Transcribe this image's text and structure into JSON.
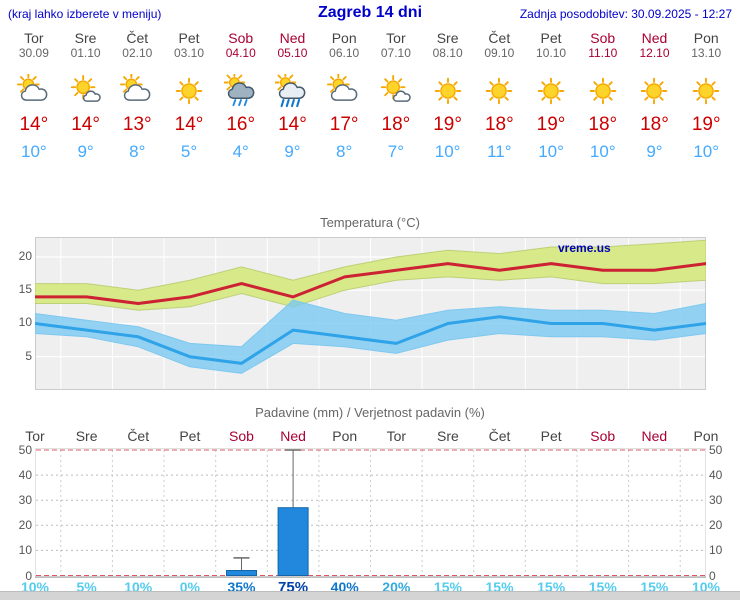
{
  "header": {
    "left_note": "(kraj lahko izberete v meniju)",
    "title": "Zagreb 14 dni",
    "last_update": "Zadnja posodobitev: 30.09.2025 - 12:27"
  },
  "watermark": "vreme.us",
  "colors": {
    "header_blue": "#0000cc",
    "watermark_blue": "#0000bb",
    "weekday": "#444444",
    "weekday_date": "#666666",
    "weekend": "#aa0033",
    "temp_high": "#cc0000",
    "temp_low": "#44aaff",
    "max_line": "#cc2233",
    "min_line": "#2fa3e8",
    "max_band": "rgba(213,232,130,0.95)",
    "min_band": "rgba(120,200,242,0.78)"
  },
  "days": [
    {
      "name": "Tor",
      "date": "30.09",
      "icon": "sun-behind-cloud",
      "high": "14°",
      "low": "10°",
      "weekend": false
    },
    {
      "name": "Sre",
      "date": "01.10",
      "icon": "sun-with-small-cloud",
      "high": "14°",
      "low": "9°",
      "weekend": false
    },
    {
      "name": "Čet",
      "date": "02.10",
      "icon": "sun-behind-cloud",
      "high": "13°",
      "low": "8°",
      "weekend": false
    },
    {
      "name": "Pet",
      "date": "03.10",
      "icon": "sunny",
      "high": "14°",
      "low": "5°",
      "weekend": false
    },
    {
      "name": "Sob",
      "date": "04.10",
      "icon": "rain-showers-sun",
      "high": "16°",
      "low": "4°",
      "weekend": true
    },
    {
      "name": "Ned",
      "date": "05.10",
      "icon": "heavy-rain-sun",
      "high": "14°",
      "low": "9°",
      "weekend": true
    },
    {
      "name": "Pon",
      "date": "06.10",
      "icon": "sun-behind-cloud",
      "high": "17°",
      "low": "8°",
      "weekend": false
    },
    {
      "name": "Tor",
      "date": "07.10",
      "icon": "sun-with-small-cloud",
      "high": "18°",
      "low": "7°",
      "weekend": false
    },
    {
      "name": "Sre",
      "date": "08.10",
      "icon": "sunny",
      "high": "19°",
      "low": "10°",
      "weekend": false
    },
    {
      "name": "Čet",
      "date": "09.10",
      "icon": "sunny",
      "high": "18°",
      "low": "11°",
      "weekend": false
    },
    {
      "name": "Pet",
      "date": "10.10",
      "icon": "sunny",
      "high": "19°",
      "low": "10°",
      "weekend": false
    },
    {
      "name": "Sob",
      "date": "11.10",
      "icon": "sunny",
      "high": "18°",
      "low": "10°",
      "weekend": true
    },
    {
      "name": "Ned",
      "date": "12.10",
      "icon": "sunny",
      "high": "18°",
      "low": "9°",
      "weekend": true
    },
    {
      "name": "Pon",
      "date": "13.10",
      "icon": "sunny",
      "high": "19°",
      "low": "10°",
      "weekend": false
    }
  ],
  "chart_data": [
    {
      "type": "line",
      "title": "Temperatura (°C)",
      "categories": [
        "Tor 30.09",
        "Sre 01.10",
        "Čet 02.10",
        "Pet 03.10",
        "Sob 04.10",
        "Ned 05.10",
        "Pon 06.10",
        "Tor 07.10",
        "Sre 08.10",
        "Čet 09.10",
        "Pet 10.10",
        "Sob 11.10",
        "Ned 12.10",
        "Pon 13.10"
      ],
      "series": [
        {
          "name": "max temperatura",
          "values": [
            14,
            14,
            13,
            14,
            16,
            14,
            17,
            18,
            19,
            18,
            19,
            18,
            18,
            19
          ]
        },
        {
          "name": "min temperatura",
          "values": [
            10,
            9,
            8,
            5,
            4,
            9,
            8,
            7,
            10,
            11,
            10,
            10,
            9,
            10
          ]
        },
        {
          "name": "max razpon zgoraj",
          "values": [
            16,
            16,
            15,
            16.5,
            18.5,
            16.5,
            18.5,
            20,
            21,
            20.5,
            21.5,
            21.5,
            22,
            22.5
          ]
        },
        {
          "name": "max razpon spodaj",
          "values": [
            13,
            13,
            12,
            12.5,
            14.5,
            12.5,
            15,
            16.5,
            17,
            16.5,
            17,
            16,
            16,
            16.5
          ]
        },
        {
          "name": "min razpon zgoraj",
          "values": [
            11.5,
            10.5,
            9.5,
            7,
            6.5,
            13.5,
            11.5,
            10.5,
            12,
            12.5,
            12,
            12,
            11.5,
            13
          ]
        },
        {
          "name": "min razpon spodaj",
          "values": [
            8.5,
            8,
            6.5,
            3.5,
            2.5,
            7,
            6.5,
            5.5,
            7.5,
            8.5,
            8,
            8,
            7.5,
            8.5
          ]
        }
      ],
      "ylim": [
        0,
        23
      ],
      "yticks": [
        5,
        10,
        15,
        20
      ],
      "grid": true,
      "legend": "none"
    },
    {
      "type": "bar",
      "title": "Padavine (mm) / Verjetnost padavin (%)",
      "categories": [
        "Tor",
        "Sre",
        "Čet",
        "Pet",
        "Sob",
        "Ned",
        "Pon",
        "Tor",
        "Sre",
        "Čet",
        "Pet",
        "Sob",
        "Ned",
        "Pon"
      ],
      "values": [
        0,
        0,
        0,
        0,
        2,
        27,
        0,
        0,
        0,
        0,
        0,
        0,
        0,
        0
      ],
      "whisker_max": [
        0,
        0,
        0,
        0,
        7,
        50,
        0,
        0,
        0,
        0,
        0,
        0,
        0,
        0
      ],
      "probabilities": [
        10,
        5,
        10,
        0,
        35,
        75,
        40,
        20,
        15,
        15,
        15,
        15,
        15,
        10
      ],
      "prob_labels": [
        "10%",
        "5%",
        "10%",
        "0%",
        "35%",
        "75%",
        "40%",
        "20%",
        "15%",
        "15%",
        "15%",
        "15%",
        "15%",
        "10%"
      ],
      "prob_colors": [
        "#55ccee",
        "#55ccee",
        "#55ccee",
        "#55ccee",
        "#1177cc",
        "#0043a8",
        "#1177cc",
        "#33aadd",
        "#55ccee",
        "#55ccee",
        "#55ccee",
        "#55ccee",
        "#55ccee",
        "#55ccee"
      ],
      "ylim": [
        0,
        52
      ],
      "yticks": [
        0,
        10,
        20,
        30,
        40,
        50
      ],
      "bar_color": "#2288dd",
      "grid": true,
      "legend": "none"
    }
  ]
}
